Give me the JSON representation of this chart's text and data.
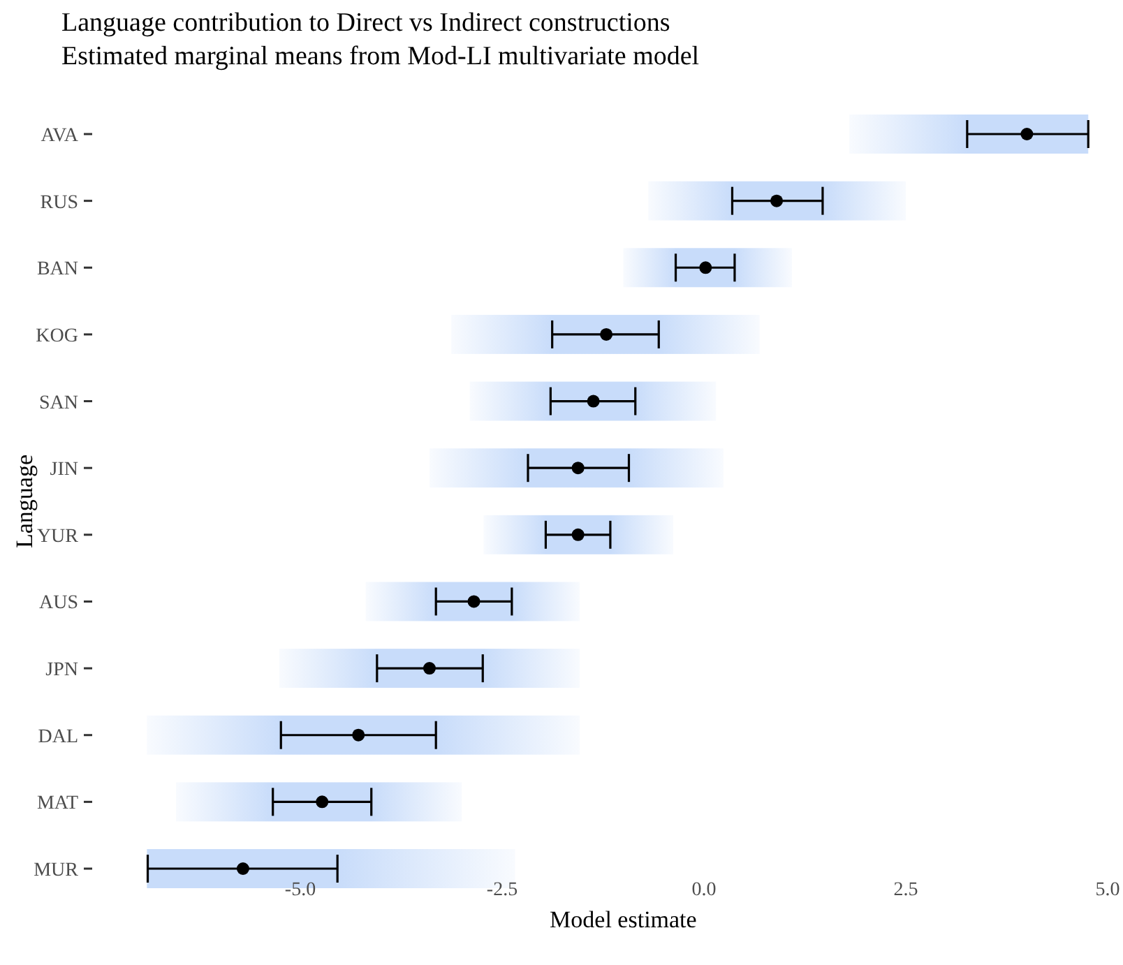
{
  "chart_data": {
    "type": "scatter",
    "orientation": "horizontal",
    "title": "Language contribution to Direct vs Indirect constructions",
    "subtitle": "Estimated marginal means from Mod-LI multivariate model",
    "xlabel": "Model estimate",
    "ylabel": "Language",
    "categories": [
      "AVA",
      "RUS",
      "BAN",
      "KOG",
      "SAN",
      "JIN",
      "YUR",
      "AUS",
      "JPN",
      "DAL",
      "MAT",
      "MUR"
    ],
    "series": [
      {
        "type": "bar",
        "color": "#c8dcfa",
        "base": [
          1.8,
          -0.69,
          -1.0,
          -3.13,
          -2.9,
          -3.4,
          -2.73,
          -4.19,
          -5.26,
          -6.9,
          -6.54,
          -6.9
        ],
        "values": [
          2.96,
          3.19,
          2.09,
          3.82,
          3.05,
          3.64,
          2.35,
          2.65,
          3.72,
          5.36,
          3.54,
          4.56
        ]
      },
      {
        "color": "#000000",
        "values": [
          4.0,
          0.9,
          0.02,
          -1.21,
          -1.37,
          -1.56,
          -1.56,
          -2.85,
          -3.4,
          -4.28,
          -4.73,
          -5.71
        ],
        "errors": [
          [
            3.26,
            4.76
          ],
          [
            0.35,
            1.47
          ],
          [
            -0.35,
            0.38
          ],
          [
            -1.88,
            -0.56
          ],
          [
            -1.9,
            -0.85
          ],
          [
            -2.18,
            -0.93
          ],
          [
            -1.96,
            -1.16
          ],
          [
            -3.32,
            -2.38
          ],
          [
            -4.05,
            -2.74
          ],
          [
            -5.24,
            -3.32
          ],
          [
            -5.34,
            -4.12
          ],
          [
            -6.89,
            -4.54
          ]
        ]
      }
    ],
    "xlim": [
      -7,
      5
    ],
    "xticks": [
      {
        "value": -5,
        "label": "-5.0"
      },
      {
        "value": -2.5,
        "label": "-2.5"
      },
      {
        "value": 0,
        "label": "0.0"
      },
      {
        "value": 2.5,
        "label": "2.5"
      },
      {
        "value": 5,
        "label": "5.0"
      }
    ],
    "grid": false,
    "marker": "circle"
  }
}
